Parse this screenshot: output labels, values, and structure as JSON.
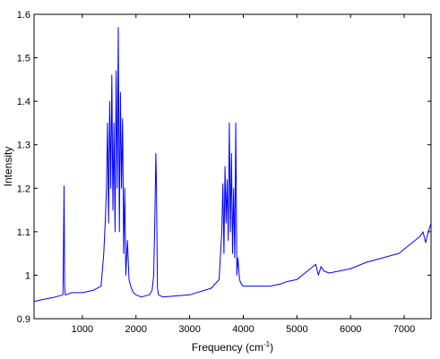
{
  "chart_data": {
    "type": "line",
    "title": "",
    "xlabel": "Frequency (cm",
    "xlabel_sup": "-1",
    "xlabel_suffix": ")",
    "ylabel": "Intensity",
    "xlim": [
      100,
      7500
    ],
    "ylim": [
      0.9,
      1.6
    ],
    "xticks": [
      1000,
      2000,
      3000,
      4000,
      5000,
      6000,
      7000
    ],
    "xtick_labels": [
      "1000",
      "2000",
      "3000",
      "4000",
      "5000",
      "6000",
      "7000"
    ],
    "yticks": [
      0.9,
      1.0,
      1.1,
      1.2,
      1.3,
      1.4,
      1.5,
      1.6
    ],
    "ytick_labels": [
      "0.9",
      "1",
      "1.1",
      "1.2",
      "1.3",
      "1.4",
      "1.5",
      "1.6"
    ],
    "grid": false,
    "legend": "none",
    "series": [
      {
        "color": "#0000ff",
        "x": [
          100,
          300,
          500,
          640,
          660,
          670,
          680,
          700,
          800,
          1000,
          1200,
          1350,
          1400,
          1430,
          1450,
          1470,
          1490,
          1510,
          1530,
          1550,
          1570,
          1590,
          1610,
          1630,
          1650,
          1670,
          1690,
          1710,
          1730,
          1750,
          1770,
          1790,
          1810,
          1840,
          1870,
          1900,
          1950,
          2000,
          2100,
          2250,
          2300,
          2330,
          2350,
          2370,
          2380,
          2400,
          2420,
          2500,
          3000,
          3400,
          3550,
          3600,
          3620,
          3640,
          3660,
          3680,
          3700,
          3720,
          3740,
          3760,
          3780,
          3800,
          3820,
          3840,
          3860,
          3880,
          3900,
          3930,
          3960,
          4000,
          4200,
          4500,
          4700,
          4800,
          5000,
          5200,
          5300,
          5350,
          5400,
          5450,
          5500,
          5600,
          5800,
          6000,
          6300,
          6600,
          6900,
          7100,
          7200,
          7300,
          7350,
          7400,
          7450,
          7500
        ],
        "y": [
          0.94,
          0.945,
          0.95,
          0.955,
          1.205,
          0.98,
          0.955,
          0.955,
          0.96,
          0.96,
          0.965,
          0.975,
          1.05,
          1.13,
          1.2,
          1.35,
          1.12,
          1.4,
          1.2,
          1.46,
          1.15,
          1.35,
          1.1,
          1.47,
          1.2,
          1.57,
          1.1,
          1.42,
          1.2,
          1.36,
          1.05,
          1.2,
          1.0,
          1.08,
          0.99,
          0.975,
          0.96,
          0.955,
          0.95,
          0.955,
          0.965,
          1.0,
          1.12,
          1.28,
          1.22,
          0.97,
          0.955,
          0.95,
          0.955,
          0.97,
          0.99,
          1.1,
          1.21,
          1.05,
          1.25,
          1.12,
          1.22,
          1.08,
          1.35,
          1.1,
          1.28,
          1.05,
          1.2,
          1.04,
          1.35,
          1.0,
          1.04,
          0.99,
          0.98,
          0.975,
          0.975,
          0.975,
          0.98,
          0.985,
          0.99,
          1.01,
          1.02,
          1.025,
          1.0,
          1.02,
          1.01,
          1.005,
          1.01,
          1.015,
          1.03,
          1.04,
          1.05,
          1.07,
          1.08,
          1.09,
          1.1,
          1.075,
          1.1,
          1.12
        ]
      }
    ]
  }
}
